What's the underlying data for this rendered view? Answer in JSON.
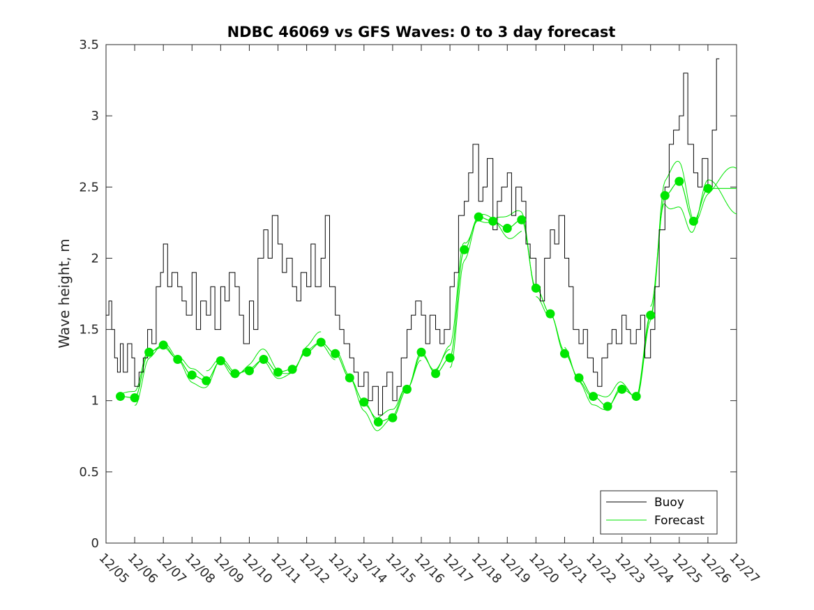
{
  "chart_data": {
    "type": "line",
    "title": "NDBC 46069 vs GFS Waves: 0 to 3 day forecast",
    "xlabel": "",
    "ylabel": "Wave height, m",
    "xlim": [
      0,
      22
    ],
    "ylim": [
      0,
      3.5
    ],
    "yticks": [
      0,
      0.5,
      1,
      1.5,
      2,
      2.5,
      3,
      3.5
    ],
    "ytick_labels": [
      "0",
      "0.5",
      "1",
      "1.5",
      "2",
      "2.5",
      "3",
      "3.5"
    ],
    "xtick_labels": [
      "12/05",
      "12/06",
      "12/07",
      "12/08",
      "12/09",
      "12/10",
      "12/11",
      "12/12",
      "12/13",
      "12/14",
      "12/15",
      "12/16",
      "12/17",
      "12/18",
      "12/19",
      "12/20",
      "12/21",
      "12/22",
      "12/23",
      "12/24",
      "12/25",
      "12/26",
      "12/27"
    ],
    "grid": false,
    "legend": {
      "position": "bottom-right",
      "entries": [
        "Buoy",
        "Forecast"
      ]
    },
    "colors": {
      "buoy": "#000000",
      "forecast": "#00e600",
      "axis": "#262626"
    },
    "buoy": {
      "name": "Buoy",
      "x": [
        0,
        0.1,
        0.2,
        0.3,
        0.4,
        0.5,
        0.6,
        0.75,
        0.9,
        1.0,
        1.15,
        1.3,
        1.45,
        1.6,
        1.75,
        1.9,
        2.0,
        2.15,
        2.3,
        2.5,
        2.65,
        2.8,
        3.0,
        3.15,
        3.3,
        3.5,
        3.65,
        3.8,
        4.0,
        4.15,
        4.3,
        4.5,
        4.65,
        4.8,
        5.0,
        5.15,
        5.3,
        5.5,
        5.65,
        5.8,
        6.0,
        6.15,
        6.3,
        6.5,
        6.65,
        6.8,
        7.0,
        7.15,
        7.3,
        7.5,
        7.65,
        7.8,
        8.0,
        8.15,
        8.3,
        8.5,
        8.65,
        8.8,
        9.0,
        9.15,
        9.3,
        9.5,
        9.65,
        9.8,
        10.0,
        10.15,
        10.3,
        10.5,
        10.65,
        10.8,
        11.0,
        11.15,
        11.3,
        11.5,
        11.65,
        11.8,
        12.0,
        12.15,
        12.3,
        12.5,
        12.65,
        12.8,
        13.0,
        13.15,
        13.3,
        13.5,
        13.65,
        13.8,
        14.0,
        14.15,
        14.3,
        14.5,
        14.65,
        14.8,
        15.0,
        15.15,
        15.3,
        15.5,
        15.65,
        15.8,
        16.0,
        16.15,
        16.3,
        16.5,
        16.65,
        16.8,
        17.0,
        17.15,
        17.3,
        17.5,
        17.65,
        17.8,
        18.0,
        18.15,
        18.3,
        18.5,
        18.65,
        18.8,
        19.0,
        19.15,
        19.3,
        19.5,
        19.65,
        19.8,
        20.0,
        20.15,
        20.3,
        20.5,
        20.65,
        20.8,
        21.0,
        21.15,
        21.3
      ],
      "y": [
        1.6,
        1.7,
        1.5,
        1.3,
        1.2,
        1.4,
        1.2,
        1.4,
        1.3,
        1.1,
        1.2,
        1.3,
        1.5,
        1.4,
        1.8,
        1.9,
        2.1,
        1.8,
        1.9,
        1.8,
        1.7,
        1.6,
        1.9,
        1.5,
        1.7,
        1.6,
        1.8,
        1.5,
        1.8,
        1.7,
        1.9,
        1.8,
        1.6,
        1.4,
        1.7,
        1.5,
        2.0,
        2.2,
        2.0,
        2.3,
        2.1,
        1.9,
        2.0,
        1.8,
        1.7,
        1.9,
        1.8,
        2.1,
        1.8,
        2.0,
        2.3,
        1.8,
        1.6,
        1.5,
        1.4,
        1.3,
        1.2,
        1.1,
        1.2,
        1.0,
        1.1,
        0.9,
        1.1,
        1.2,
        1.0,
        1.1,
        1.3,
        1.5,
        1.6,
        1.7,
        1.6,
        1.4,
        1.6,
        1.5,
        1.4,
        1.5,
        1.8,
        1.9,
        2.3,
        2.4,
        2.6,
        2.8,
        2.4,
        2.5,
        2.7,
        2.2,
        2.4,
        2.5,
        2.6,
        2.3,
        2.5,
        2.4,
        2.1,
        2.0,
        1.8,
        1.7,
        2.0,
        2.2,
        2.1,
        2.3,
        2.0,
        1.8,
        1.5,
        1.4,
        1.5,
        1.3,
        1.2,
        1.1,
        1.3,
        1.4,
        1.5,
        1.4,
        1.6,
        1.5,
        1.4,
        1.5,
        1.6,
        1.3,
        1.5,
        1.8,
        2.2,
        2.5,
        2.8,
        2.9,
        3.0,
        3.3,
        2.8,
        2.6,
        2.5,
        2.7,
        2.5,
        2.9,
        3.4
      ]
    },
    "forecast": {
      "name": "Forecast",
      "daily_x": [
        0.5,
        1.0,
        1.5,
        2.0,
        2.5,
        3.0,
        3.5,
        4.0,
        4.5,
        5.0,
        5.5,
        6.0,
        6.5,
        7.0,
        7.5,
        8.0,
        8.5,
        9.0,
        9.5,
        10.0,
        10.5,
        11.0,
        11.5,
        12.0,
        12.5,
        13.0,
        13.5,
        14.0,
        14.5,
        15.0,
        15.5,
        16.0,
        16.5,
        17.0,
        17.5,
        18.0,
        18.5,
        19.0,
        19.5,
        20.0,
        20.5,
        21.0
      ],
      "daily_y": [
        1.03,
        1.02,
        1.34,
        1.39,
        1.29,
        1.18,
        1.14,
        1.28,
        1.19,
        1.21,
        1.29,
        1.2,
        1.22,
        1.34,
        1.41,
        1.33,
        1.16,
        0.99,
        0.85,
        0.88,
        1.08,
        1.34,
        1.19,
        1.3,
        2.06,
        2.29,
        2.26,
        2.21,
        2.27,
        1.79,
        1.61,
        1.33,
        1.16,
        1.03,
        0.96,
        1.08,
        1.03,
        1.6,
        2.44,
        2.54,
        2.26,
        2.49
      ],
      "runs": [
        {
          "start": 0.5,
          "end": 3.5,
          "offset": 0.03
        },
        {
          "start": 1.0,
          "end": 4.5,
          "offset": -0.04
        },
        {
          "start": 3.5,
          "end": 7.5,
          "offset": 0.05
        },
        {
          "start": 4.5,
          "end": 8.0,
          "offset": -0.03
        },
        {
          "start": 8.0,
          "end": 11.0,
          "offset": -0.05
        },
        {
          "start": 9.0,
          "end": 12.0,
          "offset": 0.04
        },
        {
          "start": 11.5,
          "end": 15.0,
          "offset": 0.06
        },
        {
          "start": 12.0,
          "end": 14.5,
          "offset": -0.06
        },
        {
          "start": 15.0,
          "end": 18.5,
          "offset": -0.04
        },
        {
          "start": 16.0,
          "end": 19.0,
          "offset": 0.05
        },
        {
          "start": 18.5,
          "end": 22.0,
          "offset": 0.1
        },
        {
          "start": 19.0,
          "end": 22.0,
          "offset": -0.12
        }
      ]
    }
  }
}
